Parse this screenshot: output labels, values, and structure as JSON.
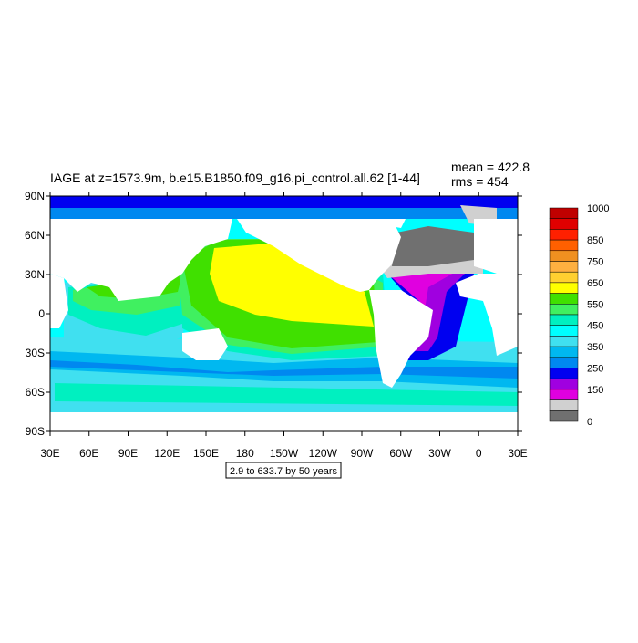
{
  "plot": {
    "title": "IAGE at z=1573.9m, b.e15.B1850.f09_g16.pi_control.all.62 [1-44]",
    "mean": "mean = 422.8",
    "rms": "rms = 454",
    "note": "2.9 to 633.7 by 50 years",
    "lat_labels": [
      "90N",
      "60N",
      "30N",
      "0",
      "30S",
      "60S",
      "90S"
    ],
    "lon_labels": [
      "30E",
      "60E",
      "90E",
      "120E",
      "150E",
      "180",
      "150W",
      "120W",
      "90W",
      "60W",
      "30W",
      "0",
      "30E"
    ]
  },
  "colorbar": {
    "colors": [
      "#c00000",
      "#e00000",
      "#ff2000",
      "#ff6000",
      "#f09020",
      "#ffb040",
      "#ffd030",
      "#ffff00",
      "#40e000",
      "#40f060",
      "#00f0c0",
      "#00ffff",
      "#40e0f0",
      "#00b8f0",
      "#0088f0",
      "#0000f0",
      "#a000e0",
      "#e000e0",
      "#d0d0d0",
      "#707070"
    ],
    "labels": [
      "1000",
      "850",
      "750",
      "650",
      "550",
      "450",
      "350",
      "250",
      "150",
      "0"
    ]
  }
}
